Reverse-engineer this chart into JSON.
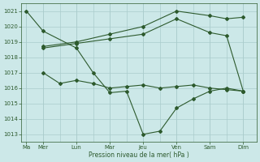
{
  "xlabel": "Pression niveau de la mer( hPa )",
  "background_color": "#cce8e8",
  "grid_color": "#aacccc",
  "line_color": "#2d5a2d",
  "ylim": [
    1012.5,
    1021.5
  ],
  "yticks": [
    1013,
    1014,
    1015,
    1016,
    1017,
    1018,
    1019,
    1020,
    1021
  ],
  "day_labels": [
    "Ma",
    "Mer",
    "Lun",
    "Mar",
    "Jeu",
    "Ven",
    "Sam",
    "Dim"
  ],
  "day_positions": [
    0,
    1,
    3,
    5,
    7,
    9,
    11,
    13
  ],
  "xlim": [
    -0.3,
    13.8
  ],
  "subgrid_x": [
    0,
    1,
    2,
    3,
    4,
    5,
    6,
    7,
    8,
    9,
    10,
    11,
    12,
    13
  ],
  "series1_volatile": {
    "x": [
      0,
      1,
      3,
      4,
      5,
      6,
      7,
      8,
      9,
      10,
      11,
      12,
      13
    ],
    "y": [
      1021.0,
      1019.7,
      1018.6,
      1017.0,
      1015.7,
      1015.8,
      1013.0,
      1013.2,
      1014.7,
      1015.3,
      1015.8,
      1016.0,
      1015.8
    ]
  },
  "series2_upper": {
    "x": [
      1,
      3,
      5,
      7,
      9,
      11,
      12,
      13
    ],
    "y": [
      1018.7,
      1019.0,
      1019.5,
      1020.0,
      1021.0,
      1020.7,
      1020.5,
      1020.6
    ]
  },
  "series3_mid_upper": {
    "x": [
      1,
      3,
      5,
      7,
      9,
      11,
      12,
      13
    ],
    "y": [
      1018.6,
      1018.9,
      1019.2,
      1019.5,
      1020.5,
      1019.6,
      1019.4,
      1015.8
    ]
  },
  "series4_lower": {
    "x": [
      1,
      2,
      3,
      4,
      5,
      6,
      7,
      8,
      9,
      10,
      11,
      12,
      13
    ],
    "y": [
      1017.0,
      1016.3,
      1016.5,
      1016.3,
      1016.0,
      1016.1,
      1016.2,
      1016.0,
      1016.1,
      1016.2,
      1016.0,
      1015.9,
      1015.8
    ]
  }
}
